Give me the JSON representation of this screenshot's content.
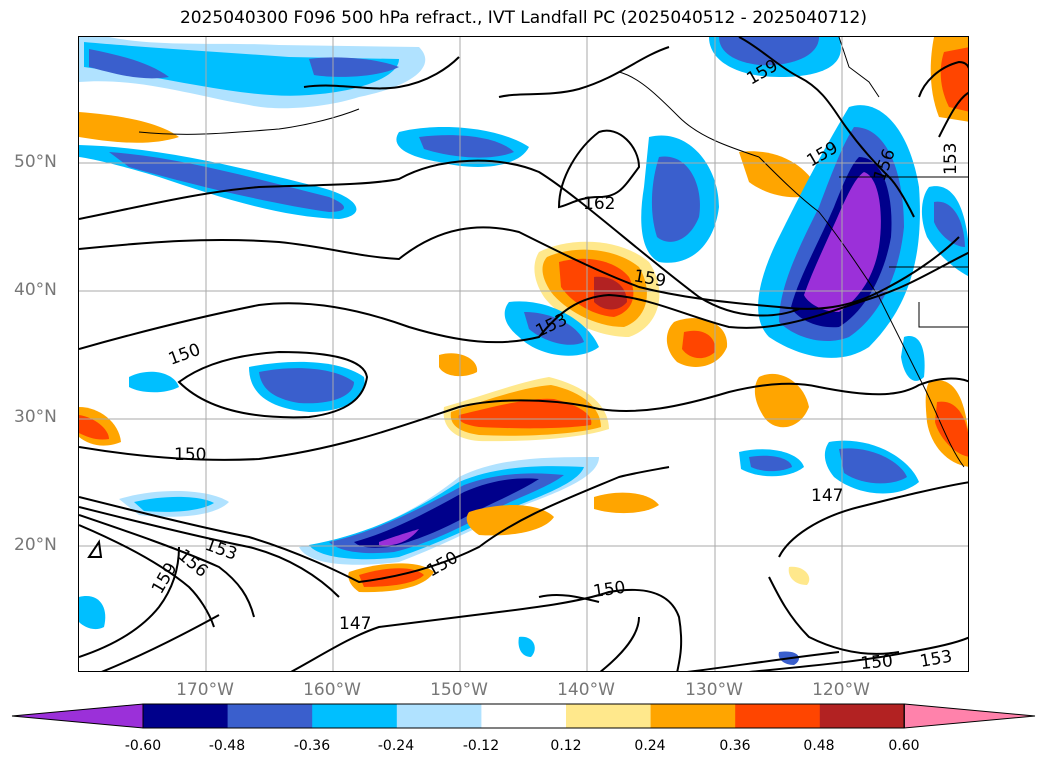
{
  "title": "2025040300 F096 500 hPa refract., IVT Landfall PC (2025040512 - 2025040712)",
  "lat_labels": [
    "50°N",
    "40°N",
    "30°N",
    "20°N"
  ],
  "lon_labels": [
    "170°W",
    "160°W",
    "150°W",
    "140°W",
    "130°W",
    "120°W"
  ],
  "contour_labels": [
    "159",
    "159",
    "162",
    "159",
    "153",
    "156",
    "153",
    "150",
    "150",
    "153",
    "156",
    "159",
    "150",
    "147",
    "150",
    "147",
    "150",
    "153"
  ],
  "colorbar": {
    "ticks": [
      "-0.60",
      "-0.48",
      "-0.36",
      "-0.24",
      "-0.12",
      "0.12",
      "0.24",
      "0.36",
      "0.48",
      "0.60"
    ],
    "colors": [
      "#9b30d9",
      "#00008b",
      "#3a5fcd",
      "#00bfff",
      "#b0e2ff",
      "#ffffff",
      "#ffe88c",
      "#ffa500",
      "#ff4500",
      "#b22222",
      "#ff82ab"
    ]
  },
  "colors": {
    "gridline": "#aaaaaa",
    "tick_text": "#777777",
    "contour": "#000000"
  }
}
